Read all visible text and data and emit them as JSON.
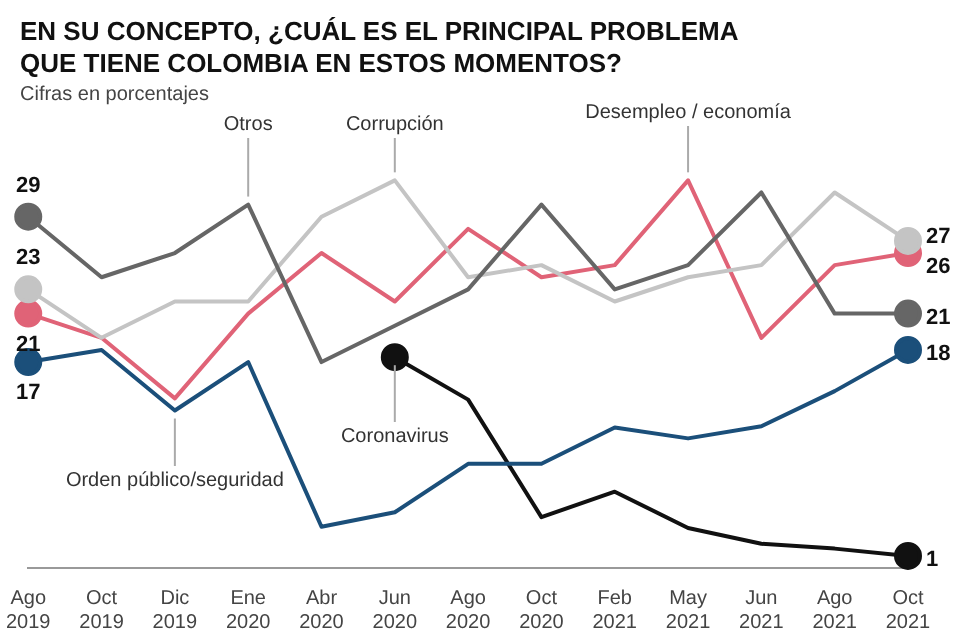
{
  "chart_data": {
    "type": "line",
    "title": "EN SU CONCEPTO, ¿CUÁL ES EL PRINCIPAL PROBLEMA QUE TIENE COLOMBIA EN ESTOS MOMENTOS?",
    "subtitle": "Cifras en porcentajes",
    "categories": [
      "Ago 2019",
      "Oct 2019",
      "Dic 2019",
      "Ene 2020",
      "Abr 2020",
      "Jun 2020",
      "Ago 2020",
      "Oct 2020",
      "Feb 2021",
      "May 2021",
      "Jun 2021",
      "Ago 2021",
      "Oct 2021"
    ],
    "series": [
      {
        "name": "Otros",
        "color": "#666666",
        "values": [
          29,
          24,
          26,
          30,
          17,
          20,
          23,
          30,
          23,
          25,
          31,
          21,
          21
        ],
        "value_labels": [
          "29",
          null,
          null,
          null,
          null,
          null,
          null,
          null,
          null,
          null,
          null,
          null,
          "21"
        ]
      },
      {
        "name": "Corrupción",
        "color": "#c4c4c4",
        "values": [
          23,
          19,
          22,
          22,
          29,
          32,
          24,
          25,
          22,
          24,
          25,
          31,
          27
        ],
        "value_labels": [
          "23",
          null,
          null,
          null,
          null,
          null,
          null,
          null,
          null,
          null,
          null,
          null,
          "27"
        ]
      },
      {
        "name": "Desempleo / economía",
        "color": "#e06377",
        "values": [
          21,
          19,
          14,
          21,
          26,
          22,
          28,
          24,
          25,
          32,
          19,
          25,
          26
        ],
        "value_labels": [
          "21",
          null,
          null,
          null,
          null,
          null,
          null,
          null,
          null,
          null,
          null,
          null,
          "26"
        ]
      },
      {
        "name": "Orden público/seguridad",
        "color": "#1b4f7a",
        "values": [
          17,
          18,
          13,
          17,
          3.4,
          4.6,
          8.6,
          8.6,
          11.6,
          10.7,
          11.7,
          14.6,
          18
        ],
        "value_labels": [
          "17",
          null,
          null,
          null,
          null,
          null,
          null,
          null,
          null,
          null,
          null,
          null,
          "18"
        ]
      },
      {
        "name": "Coronavirus",
        "color": "#111111",
        "values": [
          null,
          null,
          null,
          null,
          null,
          17.4,
          13.9,
          4.2,
          6.3,
          3.3,
          2,
          1.6,
          1
        ],
        "value_labels": [
          null,
          null,
          null,
          null,
          null,
          null,
          null,
          null,
          null,
          null,
          null,
          null,
          "1"
        ]
      }
    ],
    "tick_labels": "x",
    "grid": false,
    "legend": false,
    "line_style": "solid"
  }
}
